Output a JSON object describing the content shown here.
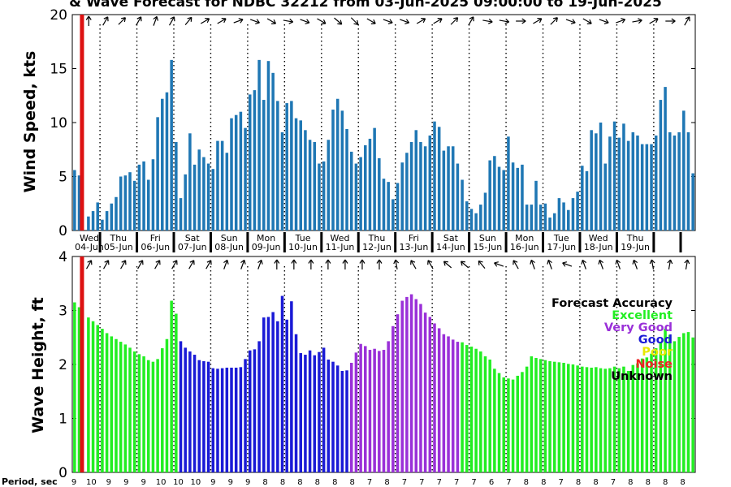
{
  "title": "& Wave Forecast for NDBC 32212 from 03-Jun-2025 09:00:00 to 19-Jun-2025",
  "chart_data": [
    {
      "type": "bar",
      "name_hint": "wind",
      "ylabel": "Wind Speed, kts",
      "ylim": [
        0,
        20
      ],
      "yticks": [
        0,
        5,
        10,
        15,
        20
      ],
      "grid": false,
      "color": "#1f77b4",
      "values": [
        5.6,
        5.1,
        0,
        1.3,
        1.8,
        2.6,
        1.0,
        1.8,
        2.5,
        3.1,
        5.0,
        5.1,
        5.4,
        4.6,
        6.1,
        6.4,
        4.7,
        6.6,
        10.5,
        12.2,
        12.8,
        15.8,
        8.2,
        3.0,
        5.2,
        9.0,
        6.1,
        7.5,
        6.8,
        6.2,
        5.7,
        8.3,
        8.3,
        7.2,
        10.4,
        10.7,
        11.0,
        9.5,
        12.6,
        13.0,
        15.8,
        12.1,
        15.7,
        14.6,
        12.0,
        9.1,
        11.8,
        12.0,
        10.4,
        10.2,
        9.3,
        8.4,
        8.2,
        6.2,
        6.4,
        8.4,
        11.2,
        12.2,
        11.1,
        9.4,
        7.3,
        6.2,
        6.8,
        7.9,
        8.5,
        9.5,
        6.7,
        4.8,
        4.5,
        2.9,
        4.4,
        6.3,
        7.2,
        8.2,
        9.3,
        8.2,
        7.8,
        8.8,
        10.1,
        9.6,
        7.4,
        7.8,
        7.8,
        6.2,
        4.7,
        2.7,
        2.0,
        1.6,
        2.4,
        3.5,
        6.5,
        6.9,
        5.9,
        5.6,
        8.7,
        6.3,
        5.8,
        6.1,
        2.4,
        2.4,
        4.6,
        2.4,
        2.5,
        1.2,
        1.6,
        3.0,
        2.6,
        1.9,
        3.0,
        3.6,
        6.0,
        5.5,
        9.3,
        9.0,
        10.0,
        6.2,
        8.7,
        10.1,
        8.6,
        9.9,
        8.3,
        9.1,
        8.8,
        8.0,
        8.0,
        8.0,
        8.8,
        12.1,
        13.3,
        9.1,
        8.8,
        9.1,
        11.1,
        9.1,
        5.3
      ]
    },
    {
      "type": "bar",
      "name_hint": "wave",
      "ylabel": "Wave Height, ft",
      "xlabel": "Period, sec",
      "ylim": [
        0,
        4
      ],
      "yticks": [
        0,
        1,
        2,
        3,
        4
      ],
      "grid": false,
      "values": [
        3.15,
        3.06,
        0,
        2.87,
        2.8,
        2.73,
        2.66,
        2.58,
        2.52,
        2.47,
        2.42,
        2.37,
        2.31,
        2.24,
        2.19,
        2.15,
        2.08,
        2.05,
        2.1,
        2.3,
        2.47,
        3.18,
        2.94,
        2.43,
        2.31,
        2.24,
        2.18,
        2.08,
        2.06,
        2.05,
        1.93,
        1.92,
        1.93,
        1.94,
        1.94,
        1.94,
        1.95,
        2.1,
        2.26,
        2.28,
        2.43,
        2.87,
        2.88,
        2.97,
        2.8,
        3.27,
        2.83,
        3.17,
        2.56,
        2.21,
        2.18,
        2.26,
        2.17,
        2.23,
        2.31,
        2.09,
        2.05,
        1.98,
        1.88,
        1.89,
        2.03,
        2.22,
        2.38,
        2.34,
        2.27,
        2.29,
        2.25,
        2.27,
        2.43,
        2.71,
        2.93,
        3.18,
        3.25,
        3.3,
        3.21,
        3.12,
        2.96,
        2.88,
        2.76,
        2.67,
        2.56,
        2.52,
        2.46,
        2.42,
        2.41,
        2.36,
        2.33,
        2.29,
        2.24,
        2.15,
        2.09,
        1.92,
        1.84,
        1.76,
        1.74,
        1.72,
        1.79,
        1.86,
        1.96,
        2.15,
        2.12,
        2.1,
        2.08,
        2.06,
        2.05,
        2.04,
        2.03,
        2.01,
        2.0,
        1.98,
        1.96,
        1.95,
        1.94,
        1.95,
        1.93,
        1.92,
        1.93,
        1.96,
        1.93,
        1.96,
        1.88,
        1.99,
        2.02,
        2.11,
        2.13,
        2.2,
        2.3,
        2.4,
        2.66,
        2.55,
        2.43,
        2.51,
        2.58,
        2.6,
        2.5
      ],
      "categories": [
        "Excellent",
        "Excellent",
        "Excellent",
        "Excellent",
        "Excellent",
        "Excellent",
        "Excellent",
        "Excellent",
        "Excellent",
        "Excellent",
        "Excellent",
        "Excellent",
        "Excellent",
        "Excellent",
        "Excellent",
        "Excellent",
        "Excellent",
        "Excellent",
        "Excellent",
        "Excellent",
        "Excellent",
        "Excellent",
        "Excellent",
        "Good",
        "Good",
        "Good",
        "Good",
        "Good",
        "Good",
        "Good",
        "Good",
        "Good",
        "Good",
        "Good",
        "Good",
        "Good",
        "Good",
        "Good",
        "Good",
        "Good",
        "Good",
        "Good",
        "Good",
        "Good",
        "Good",
        "Good",
        "Good",
        "Good",
        "Good",
        "Good",
        "Good",
        "Good",
        "Good",
        "Good",
        "Good",
        "Good",
        "Good",
        "Good",
        "Good",
        "Good",
        "Very Good",
        "Very Good",
        "Very Good",
        "Very Good",
        "Very Good",
        "Very Good",
        "Very Good",
        "Very Good",
        "Very Good",
        "Very Good",
        "Very Good",
        "Very Good",
        "Very Good",
        "Very Good",
        "Very Good",
        "Very Good",
        "Very Good",
        "Very Good",
        "Very Good",
        "Very Good",
        "Very Good",
        "Very Good",
        "Very Good",
        "Very Good",
        "Excellent",
        "Excellent",
        "Excellent",
        "Excellent",
        "Excellent",
        "Excellent",
        "Excellent",
        "Excellent",
        "Excellent",
        "Excellent",
        "Excellent",
        "Excellent",
        "Excellent",
        "Excellent",
        "Excellent",
        "Excellent",
        "Excellent",
        "Excellent",
        "Excellent",
        "Excellent",
        "Excellent",
        "Excellent",
        "Excellent",
        "Excellent",
        "Excellent",
        "Excellent",
        "Excellent",
        "Excellent",
        "Excellent",
        "Excellent",
        "Excellent",
        "Excellent",
        "Excellent",
        "Excellent",
        "Excellent",
        "Excellent",
        "Excellent",
        "Excellent",
        "Excellent",
        "Excellent",
        "Excellent",
        "Excellent",
        "Excellent",
        "Excellent",
        "Excellent",
        "Excellent",
        "Excellent",
        "Excellent",
        "Excellent",
        "Excellent",
        "Excellent"
      ],
      "period_labels": [
        "9",
        "10",
        "9",
        "9",
        "9",
        "10",
        "10",
        "10",
        "9",
        "9",
        "9",
        "8",
        "8",
        "8",
        "8",
        "8",
        "8",
        "7",
        "8",
        "7",
        "7",
        "7",
        "7",
        "7",
        "6",
        "7",
        "8",
        "8",
        "7",
        "8",
        "8",
        "7",
        "8",
        "8",
        "8",
        "8"
      ]
    }
  ],
  "day_labels": [
    {
      "dow": "Wed",
      "date": "04-Jun"
    },
    {
      "dow": "Thu",
      "date": "05-Jun"
    },
    {
      "dow": "Fri",
      "date": "06-Jun"
    },
    {
      "dow": "Sat",
      "date": "07-Jun"
    },
    {
      "dow": "Sun",
      "date": "08-Jun"
    },
    {
      "dow": "Mon",
      "date": "09-Jun"
    },
    {
      "dow": "Tue",
      "date": "10-Jun"
    },
    {
      "dow": "Wed",
      "date": "11-Jun"
    },
    {
      "dow": "Thu",
      "date": "12-Jun"
    },
    {
      "dow": "Fri",
      "date": "13-Jun"
    },
    {
      "dow": "Sat",
      "date": "14-Jun"
    },
    {
      "dow": "Sun",
      "date": "15-Jun"
    },
    {
      "dow": "Mon",
      "date": "16-Jun"
    },
    {
      "dow": "Tue",
      "date": "17-Jun"
    },
    {
      "dow": "Wed",
      "date": "18-Jun"
    },
    {
      "dow": "Thu",
      "date": "19-Jun"
    }
  ],
  "wind_arrow_angles": [
    270,
    300,
    315,
    300,
    290,
    300,
    310,
    330,
    330,
    340,
    20,
    30,
    10,
    20,
    30,
    40,
    45,
    30,
    20,
    20,
    330,
    330,
    315,
    300,
    10,
    10,
    0,
    330,
    315,
    20,
    30,
    20,
    340,
    350,
    330,
    0,
    300
  ],
  "wave_arrow_angles": [
    300,
    300,
    300,
    300,
    300,
    300,
    300,
    300,
    290,
    290,
    290,
    270,
    270,
    270,
    270,
    270,
    270,
    270,
    260,
    240,
    240,
    220,
    220,
    230,
    200,
    240,
    250,
    250,
    200,
    250,
    250,
    250,
    250,
    260,
    280,
    280
  ],
  "legend": {
    "title": "Forecast Accuracy",
    "items": [
      {
        "label": "Excellent",
        "color": "#22ee22"
      },
      {
        "label": "Very Good",
        "color": "#9a30d8"
      },
      {
        "label": "Good",
        "color": "#1a1ad6"
      },
      {
        "label": "Poor",
        "color": "#e8e800"
      },
      {
        "label": "Noise",
        "color": "#ee2222"
      },
      {
        "label": "Unknown",
        "color": "#000000"
      }
    ]
  },
  "colors": {
    "wind_bar": "#1f77b4",
    "now_marker": "#dd1111",
    "excellent": "#22ee22",
    "very_good": "#9a30d8",
    "good": "#1a1ad6"
  }
}
